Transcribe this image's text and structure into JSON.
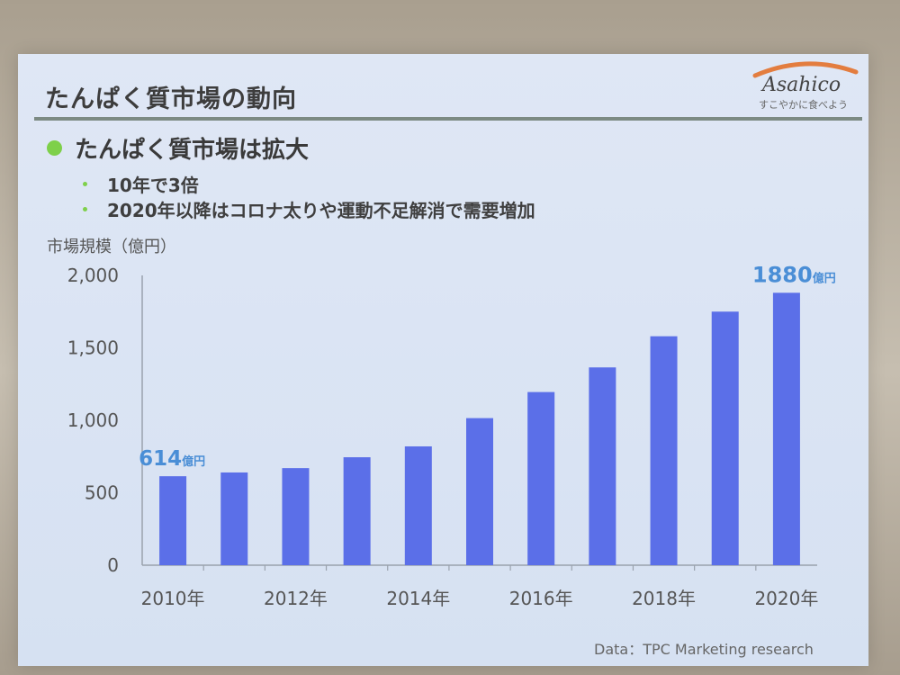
{
  "slide": {
    "title": "たんぱく質市場の動向",
    "logo": {
      "name": "Asahico",
      "tagline": "すこやかに食べよう",
      "arc_color": "#e37d3f"
    },
    "bullet": "たんぱく質市場は拡大",
    "sub_bullets": [
      "10年で3倍",
      "2020年以降はコロナ太りや運動不足解消で需要増加"
    ],
    "source": "Data：TPC Marketing research",
    "accent_color": "#7ed04a"
  },
  "chart_data": {
    "type": "bar",
    "ylabel": "市場規模（億円）",
    "ylim": [
      0,
      2000
    ],
    "yticks": [
      0,
      500,
      1000,
      1500,
      2000
    ],
    "ytick_labels": [
      "0",
      "500",
      "1,000",
      "1,500",
      "2,000"
    ],
    "categories": [
      "2010",
      "2011",
      "2012",
      "2013",
      "2014",
      "2015",
      "2016",
      "2017",
      "2018",
      "2019",
      "2020"
    ],
    "xtick_labels": [
      "2010年",
      "2012年",
      "2014年",
      "2016年",
      "2018年",
      "2020年"
    ],
    "values": [
      614,
      640,
      670,
      745,
      820,
      1015,
      1195,
      1365,
      1580,
      1750,
      1880
    ],
    "bar_color": "#5b6fe8",
    "annotations": [
      {
        "index": 0,
        "value": "614",
        "unit": "億円"
      },
      {
        "index": 10,
        "value": "1880",
        "unit": "億円"
      }
    ],
    "annotation_color": "#4a8ed6",
    "grid": false
  }
}
